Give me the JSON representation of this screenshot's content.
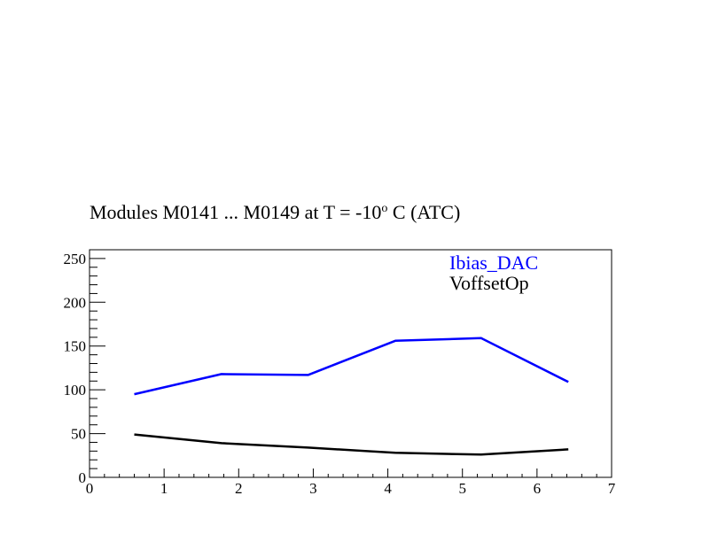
{
  "chart_data": {
    "type": "line",
    "title": {
      "prefix": "Modules M0141 ... M0149 at T =  -10",
      "superscript": "o",
      "suffix": " C (ATC)"
    },
    "xlabel": "",
    "ylabel": "",
    "xlim": [
      0,
      7
    ],
    "ylim": [
      0,
      260
    ],
    "x_ticks": [
      0,
      1,
      2,
      3,
      4,
      5,
      6,
      7
    ],
    "y_ticks": [
      0,
      50,
      100,
      150,
      200,
      250
    ],
    "legend_position": "top-right (inside plot)",
    "grid": false,
    "series": [
      {
        "name": "Ibias_DAC",
        "color": "#0000ff",
        "x": [
          0.6,
          1.77,
          2.93,
          4.1,
          5.25,
          6.42
        ],
        "y": [
          95,
          118,
          117,
          156,
          159,
          109
        ]
      },
      {
        "name": "VoffsetOp",
        "color": "#000000",
        "x": [
          0.6,
          1.77,
          2.93,
          4.1,
          5.25,
          6.42
        ],
        "y": [
          49,
          39,
          34,
          28,
          26,
          32
        ]
      }
    ]
  }
}
